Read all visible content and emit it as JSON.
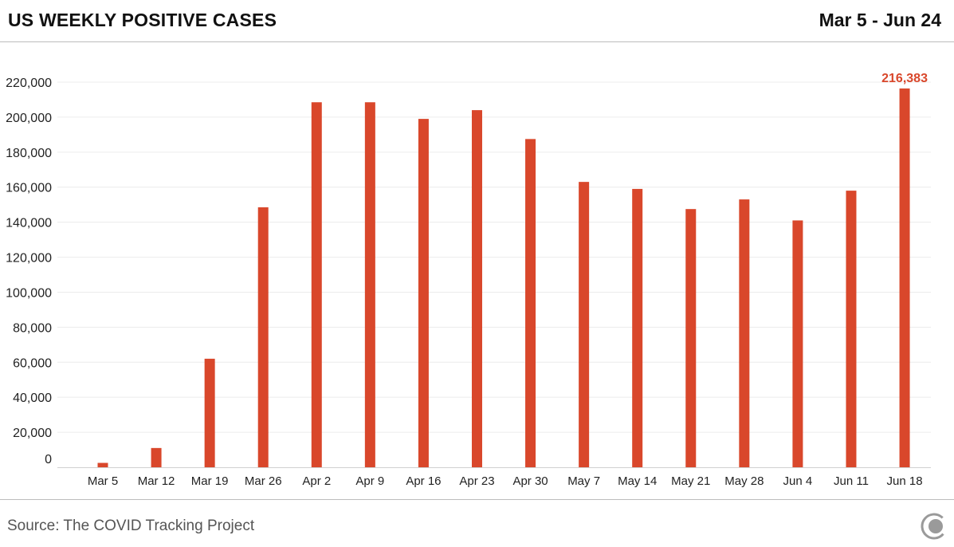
{
  "header": {
    "title": "US WEEKLY POSITIVE CASES",
    "date_range": "Mar 5 - Jun 24"
  },
  "footer": {
    "source": "Source: The COVID Tracking Project",
    "logo_icon": "covid-tracking-project-logo-icon"
  },
  "colors": {
    "bar": "#d9472b",
    "highlight_label": "#d9472b",
    "grid": "#ececec",
    "axis_text": "#222222"
  },
  "chart_data": {
    "type": "bar",
    "title": "US WEEKLY POSITIVE CASES",
    "xlabel": "",
    "ylabel": "",
    "categories": [
      "Mar 5",
      "Mar 12",
      "Mar 19",
      "Mar 26",
      "Apr 2",
      "Apr 9",
      "Apr 16",
      "Apr 23",
      "Apr 30",
      "May 7",
      "May 14",
      "May 21",
      "May 28",
      "Jun 4",
      "Jun 11",
      "Jun 18"
    ],
    "values": [
      2500,
      11000,
      62000,
      148500,
      208500,
      208500,
      199000,
      204000,
      187500,
      163000,
      159000,
      147500,
      153000,
      141000,
      158000,
      216383
    ],
    "yticks": [
      "0",
      "20,000",
      "40,000",
      "60,000",
      "80,000",
      "100,000",
      "120,000",
      "140,000",
      "160,000",
      "180,000",
      "200,000",
      "220,000"
    ],
    "ytick_values": [
      0,
      20000,
      40000,
      60000,
      80000,
      100000,
      120000,
      140000,
      160000,
      180000,
      200000,
      220000
    ],
    "ylim": [
      0,
      220000
    ],
    "grid": true,
    "annotations": [
      {
        "category": "Jun 18",
        "text": "216,383"
      }
    ]
  }
}
